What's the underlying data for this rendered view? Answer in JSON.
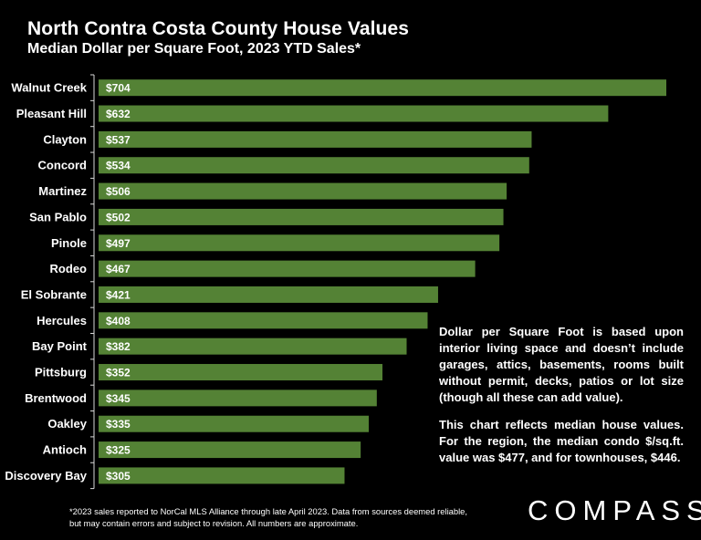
{
  "chart_data": {
    "type": "bar",
    "orientation": "horizontal",
    "title": "North Contra Costa County House Values",
    "subtitle": "Median Dollar per Square Foot, 2023 YTD Sales*",
    "categories": [
      "Walnut Creek",
      "Pleasant Hill",
      "Clayton",
      "Concord",
      "Martinez",
      "San Pablo",
      "Pinole",
      "Rodeo",
      "El Sobrante",
      "Hercules",
      "Bay Point",
      "Pittsburg",
      "Brentwood",
      "Oakley",
      "Antioch",
      "Discovery Bay"
    ],
    "values": [
      704,
      632,
      537,
      534,
      506,
      502,
      497,
      467,
      421,
      408,
      382,
      352,
      345,
      335,
      325,
      305
    ],
    "value_labels": [
      "$704",
      "$632",
      "$537",
      "$534",
      "$506",
      "$502",
      "$497",
      "$467",
      "$421",
      "$408",
      "$382",
      "$352",
      "$345",
      "$335",
      "$325",
      "$305"
    ],
    "xlim": [
      0,
      704
    ],
    "grid": false,
    "bar_color": "#548235",
    "background_color": "#000000"
  },
  "note": {
    "paragraph1": "Dollar per Square Foot is based upon interior living space and doesn’t include garages, attics, basements, rooms built without permit, decks, patios or lot size (though all these can add value).",
    "paragraph2": "This chart reflects median house values. For the region, the median condo $/sq.ft. value was $477, and for townhouses, $446."
  },
  "footnote": "*2023 sales reported to NorCal MLS Alliance through late April 2023. Data from sources deemed reliable, but may contain errors and subject to revision. All numbers are approximate.",
  "logo": "COMPASS"
}
